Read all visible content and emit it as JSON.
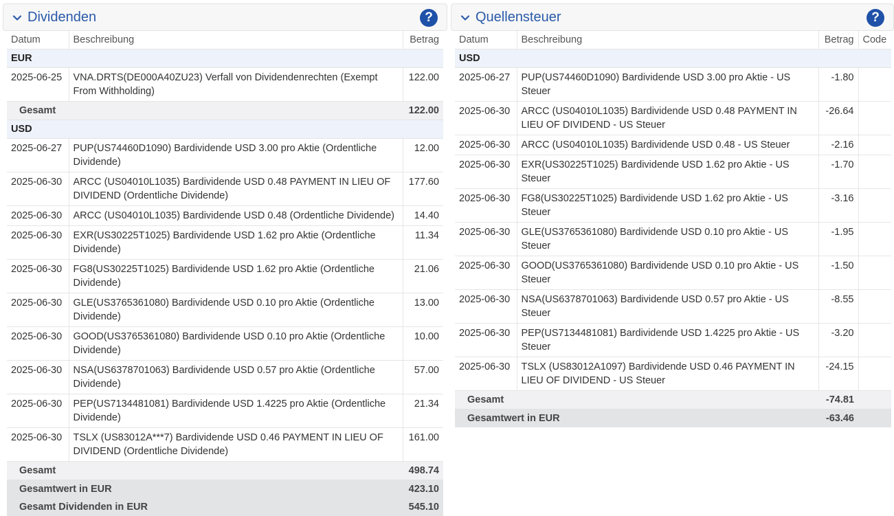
{
  "dividends": {
    "title": "Dividenden",
    "help": "?",
    "headers": {
      "date": "Datum",
      "desc": "Beschreibung",
      "amount": "Betrag"
    },
    "groups": [
      {
        "currency": "EUR",
        "rows": [
          {
            "date": "2025-06-25",
            "desc": "VNA.DRTS(DE000A40ZU23) Verfall von Dividendenrechten (Exempt From Withholding)",
            "amount": "122.00"
          }
        ],
        "total_label": "Gesamt",
        "total": "122.00"
      },
      {
        "currency": "USD",
        "rows": [
          {
            "date": "2025-06-27",
            "desc": "PUP(US74460D1090) Bardividende USD 3.00 pro Aktie (Ordentliche Dividende)",
            "amount": "12.00"
          },
          {
            "date": "2025-06-30",
            "desc": "ARCC (US04010L1035) Bardividende USD 0.48 PAYMENT IN LIEU OF DIVIDEND (Ordentliche Dividende)",
            "amount": "177.60"
          },
          {
            "date": "2025-06-30",
            "desc": "ARCC (US04010L1035) Bardividende USD 0.48 (Ordentliche Dividende)",
            "amount": "14.40"
          },
          {
            "date": "2025-06-30",
            "desc": "EXR(US30225T1025) Bardividende USD 1.62 pro Aktie (Ordentliche Dividende)",
            "amount": "11.34"
          },
          {
            "date": "2025-06-30",
            "desc": "FG8(US30225T1025) Bardividende USD 1.62 pro Aktie (Ordentliche Dividende)",
            "amount": "21.06"
          },
          {
            "date": "2025-06-30",
            "desc": "GLE(US3765361080) Bardividende USD 0.10 pro Aktie (Ordentliche Dividende)",
            "amount": "13.00"
          },
          {
            "date": "2025-06-30",
            "desc": "GOOD(US3765361080) Bardividende USD 0.10 pro Aktie (Ordentliche Dividende)",
            "amount": "10.00"
          },
          {
            "date": "2025-06-30",
            "desc": "NSA(US6378701063) Bardividende USD 0.57 pro Aktie (Ordentliche Dividende)",
            "amount": "57.00"
          },
          {
            "date": "2025-06-30",
            "desc": "PEP(US7134481081) Bardividende USD 1.4225 pro Aktie (Ordentliche Dividende)",
            "amount": "21.34"
          },
          {
            "date": "2025-06-30",
            "desc": "TSLX (US83012A***7) Bardividende USD 0.46 PAYMENT IN LIEU OF DIVIDEND (Ordentliche Dividende)",
            "amount": "161.00"
          }
        ],
        "total_label": "Gesamt",
        "total": "498.74"
      }
    ],
    "summary": [
      {
        "label": "Gesamtwert in EUR",
        "value": "423.10"
      },
      {
        "label": "Gesamt Dividenden in EUR",
        "value": "545.10"
      }
    ]
  },
  "withholding": {
    "title": "Quellensteuer",
    "help": "?",
    "headers": {
      "date": "Datum",
      "desc": "Beschreibung",
      "amount": "Betrag",
      "code": "Code"
    },
    "groups": [
      {
        "currency": "USD",
        "rows": [
          {
            "date": "2025-06-27",
            "desc": "PUP(US74460D1090) Bardividende USD 3.00 pro Aktie - US Steuer",
            "amount": "-1.80",
            "code": ""
          },
          {
            "date": "2025-06-30",
            "desc": "ARCC (US04010L1035) Bardividende USD 0.48 PAYMENT IN LIEU OF DIVIDEND - US Steuer",
            "amount": "-26.64",
            "code": ""
          },
          {
            "date": "2025-06-30",
            "desc": "ARCC (US04010L1035) Bardividende USD 0.48 - US Steuer",
            "amount": "-2.16",
            "code": ""
          },
          {
            "date": "2025-06-30",
            "desc": "EXR(US30225T1025) Bardividende USD 1.62 pro Aktie - US Steuer",
            "amount": "-1.70",
            "code": ""
          },
          {
            "date": "2025-06-30",
            "desc": "FG8(US30225T1025) Bardividende USD 1.62 pro Aktie - US Steuer",
            "amount": "-3.16",
            "code": ""
          },
          {
            "date": "2025-06-30",
            "desc": "GLE(US3765361080) Bardividende USD 0.10 pro Aktie - US Steuer",
            "amount": "-1.95",
            "code": ""
          },
          {
            "date": "2025-06-30",
            "desc": "GOOD(US3765361080) Bardividende USD 0.10 pro Aktie - US Steuer",
            "amount": "-1.50",
            "code": ""
          },
          {
            "date": "2025-06-30",
            "desc": "NSA(US6378701063) Bardividende USD 0.57 pro Aktie - US Steuer",
            "amount": "-8.55",
            "code": ""
          },
          {
            "date": "2025-06-30",
            "desc": "PEP(US7134481081) Bardividende USD 1.4225 pro Aktie - US Steuer",
            "amount": "-3.20",
            "code": ""
          },
          {
            "date": "2025-06-30",
            "desc": "TSLX (US83012A1097) Bardividende USD 0.46 PAYMENT IN LIEU OF DIVIDEND - US Steuer",
            "amount": "-24.15",
            "code": ""
          }
        ],
        "total_label": "Gesamt",
        "total": "-74.81"
      }
    ],
    "summary": [
      {
        "label": "Gesamtwert in EUR",
        "value": "-63.46"
      }
    ]
  },
  "colors": {
    "accent": "#2a5aa9",
    "help_bg": "#1f51a8",
    "group_bg": "#eef2fa",
    "total_bg": "#f1f1f3",
    "summary_bg": "#e3e4e6"
  },
  "icons": {
    "collapse": "chevron-down-icon",
    "help": "help-icon"
  }
}
